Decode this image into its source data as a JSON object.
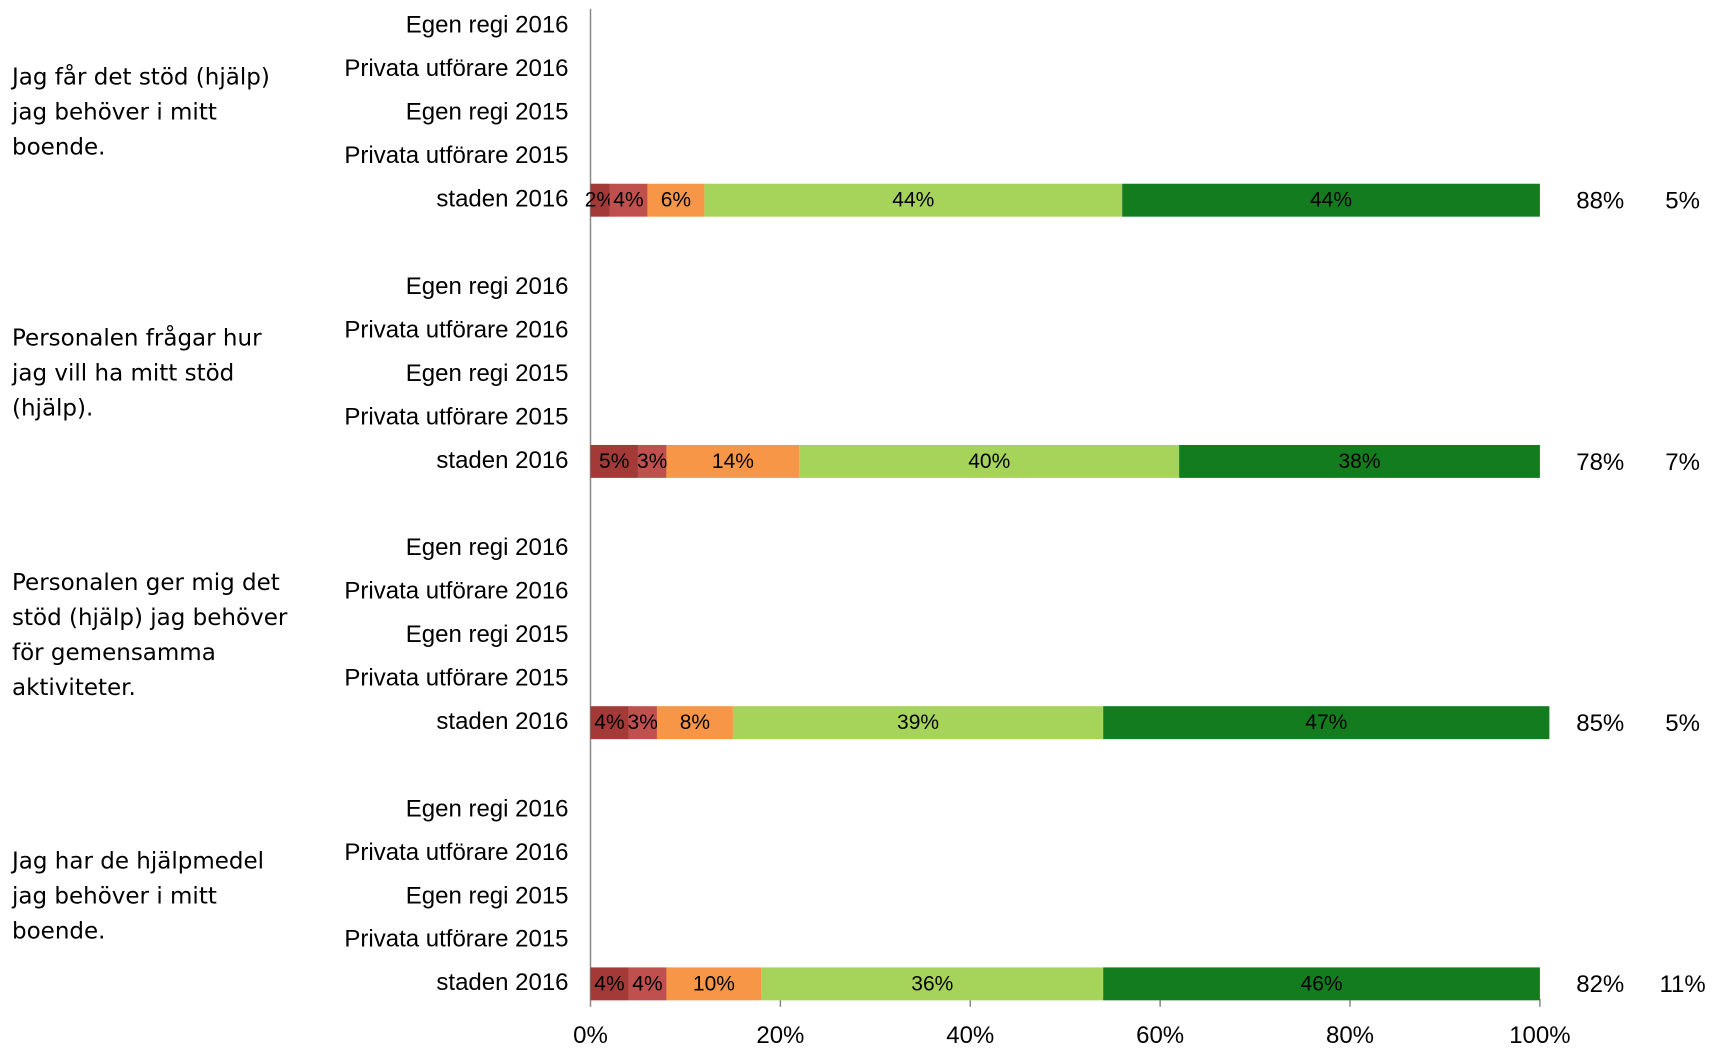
{
  "chart_data": {
    "type": "bar",
    "orientation": "horizontal",
    "stacked": true,
    "xlim": [
      0,
      100
    ],
    "xticks": [
      {
        "value": 0,
        "label": "0%"
      },
      {
        "value": 20,
        "label": "20%"
      },
      {
        "value": 40,
        "label": "40%"
      },
      {
        "value": 60,
        "label": "60%"
      },
      {
        "value": 80,
        "label": "80%"
      },
      {
        "value": 100,
        "label": "100%"
      }
    ],
    "groups": [
      {
        "label": "Jag får det stöd (hjälp) jag behöver i mitt boende.",
        "categories": [
          "Egen regi 2016",
          "Privata utförare 2016",
          "Egen regi 2015",
          "Privata utförare 2015",
          "staden 2016"
        ],
        "series": [
          {
            "color": "#a33a38",
            "values": [
              null,
              null,
              null,
              null,
              2
            ],
            "value_labels": [
              null,
              null,
              null,
              null,
              "2%"
            ]
          },
          {
            "color": "#c0504d",
            "values": [
              null,
              null,
              null,
              null,
              4
            ],
            "value_labels": [
              null,
              null,
              null,
              null,
              "4%"
            ]
          },
          {
            "color": "#f79646",
            "values": [
              null,
              null,
              null,
              null,
              6
            ],
            "value_labels": [
              null,
              null,
              null,
              null,
              "6%"
            ]
          },
          {
            "color": "#a6d45a",
            "values": [
              null,
              null,
              null,
              null,
              44
            ],
            "value_labels": [
              null,
              null,
              null,
              null,
              "44%"
            ]
          },
          {
            "color": "#137c1f",
            "values": [
              null,
              null,
              null,
              null,
              44
            ],
            "value_labels": [
              null,
              null,
              null,
              null,
              "44%"
            ]
          }
        ],
        "summary": {
          "values": [
            88,
            5
          ],
          "value_labels": [
            "88%",
            "5%"
          ]
        }
      },
      {
        "label": "Personalen frågar hur jag vill ha mitt stöd (hjälp).",
        "categories": [
          "Egen regi 2016",
          "Privata utförare 2016",
          "Egen regi 2015",
          "Privata utförare 2015",
          "staden 2016"
        ],
        "series": [
          {
            "color": "#a33a38",
            "values": [
              null,
              null,
              null,
              null,
              5
            ],
            "value_labels": [
              null,
              null,
              null,
              null,
              "5%"
            ]
          },
          {
            "color": "#c0504d",
            "values": [
              null,
              null,
              null,
              null,
              3
            ],
            "value_labels": [
              null,
              null,
              null,
              null,
              "3%"
            ]
          },
          {
            "color": "#f79646",
            "values": [
              null,
              null,
              null,
              null,
              14
            ],
            "value_labels": [
              null,
              null,
              null,
              null,
              "14%"
            ]
          },
          {
            "color": "#a6d45a",
            "values": [
              null,
              null,
              null,
              null,
              40
            ],
            "value_labels": [
              null,
              null,
              null,
              null,
              "40%"
            ]
          },
          {
            "color": "#137c1f",
            "values": [
              null,
              null,
              null,
              null,
              38
            ],
            "value_labels": [
              null,
              null,
              null,
              null,
              "38%"
            ]
          }
        ],
        "summary": {
          "values": [
            78,
            7
          ],
          "value_labels": [
            "78%",
            "7%"
          ]
        }
      },
      {
        "label": "Personalen ger mig det stöd (hjälp) jag behöver för gemensamma aktiviteter.",
        "categories": [
          "Egen regi 2016",
          "Privata utförare 2016",
          "Egen regi 2015",
          "Privata utförare 2015",
          "staden 2016"
        ],
        "series": [
          {
            "color": "#a33a38",
            "values": [
              null,
              null,
              null,
              null,
              4
            ],
            "value_labels": [
              null,
              null,
              null,
              null,
              "4%"
            ]
          },
          {
            "color": "#c0504d",
            "values": [
              null,
              null,
              null,
              null,
              3
            ],
            "value_labels": [
              null,
              null,
              null,
              null,
              "3%"
            ]
          },
          {
            "color": "#f79646",
            "values": [
              null,
              null,
              null,
              null,
              8
            ],
            "value_labels": [
              null,
              null,
              null,
              null,
              "8%"
            ]
          },
          {
            "color": "#a6d45a",
            "values": [
              null,
              null,
              null,
              null,
              39
            ],
            "value_labels": [
              null,
              null,
              null,
              null,
              "39%"
            ]
          },
          {
            "color": "#137c1f",
            "values": [
              null,
              null,
              null,
              null,
              47
            ],
            "value_labels": [
              null,
              null,
              null,
              null,
              "47%"
            ]
          }
        ],
        "summary": {
          "values": [
            85,
            5
          ],
          "value_labels": [
            "85%",
            "5%"
          ]
        }
      },
      {
        "label": "Jag har de hjälpmedel jag behöver i mitt boende.",
        "categories": [
          "Egen regi 2016",
          "Privata utförare 2016",
          "Egen regi 2015",
          "Privata utförare 2015",
          "staden 2016"
        ],
        "series": [
          {
            "color": "#a33a38",
            "values": [
              null,
              null,
              null,
              null,
              4
            ],
            "value_labels": [
              null,
              null,
              null,
              null,
              "4%"
            ]
          },
          {
            "color": "#c0504d",
            "values": [
              null,
              null,
              null,
              null,
              4
            ],
            "value_labels": [
              null,
              null,
              null,
              null,
              "4%"
            ]
          },
          {
            "color": "#f79646",
            "values": [
              null,
              null,
              null,
              null,
              10
            ],
            "value_labels": [
              null,
              null,
              null,
              null,
              "10%"
            ]
          },
          {
            "color": "#a6d45a",
            "values": [
              null,
              null,
              null,
              null,
              36
            ],
            "value_labels": [
              null,
              null,
              null,
              null,
              "36%"
            ]
          },
          {
            "color": "#137c1f",
            "values": [
              null,
              null,
              null,
              null,
              46
            ],
            "value_labels": [
              null,
              null,
              null,
              null,
              "46%"
            ]
          }
        ],
        "summary": {
          "values": [
            82,
            11
          ],
          "value_labels": [
            "82%",
            "11%"
          ]
        }
      }
    ]
  }
}
